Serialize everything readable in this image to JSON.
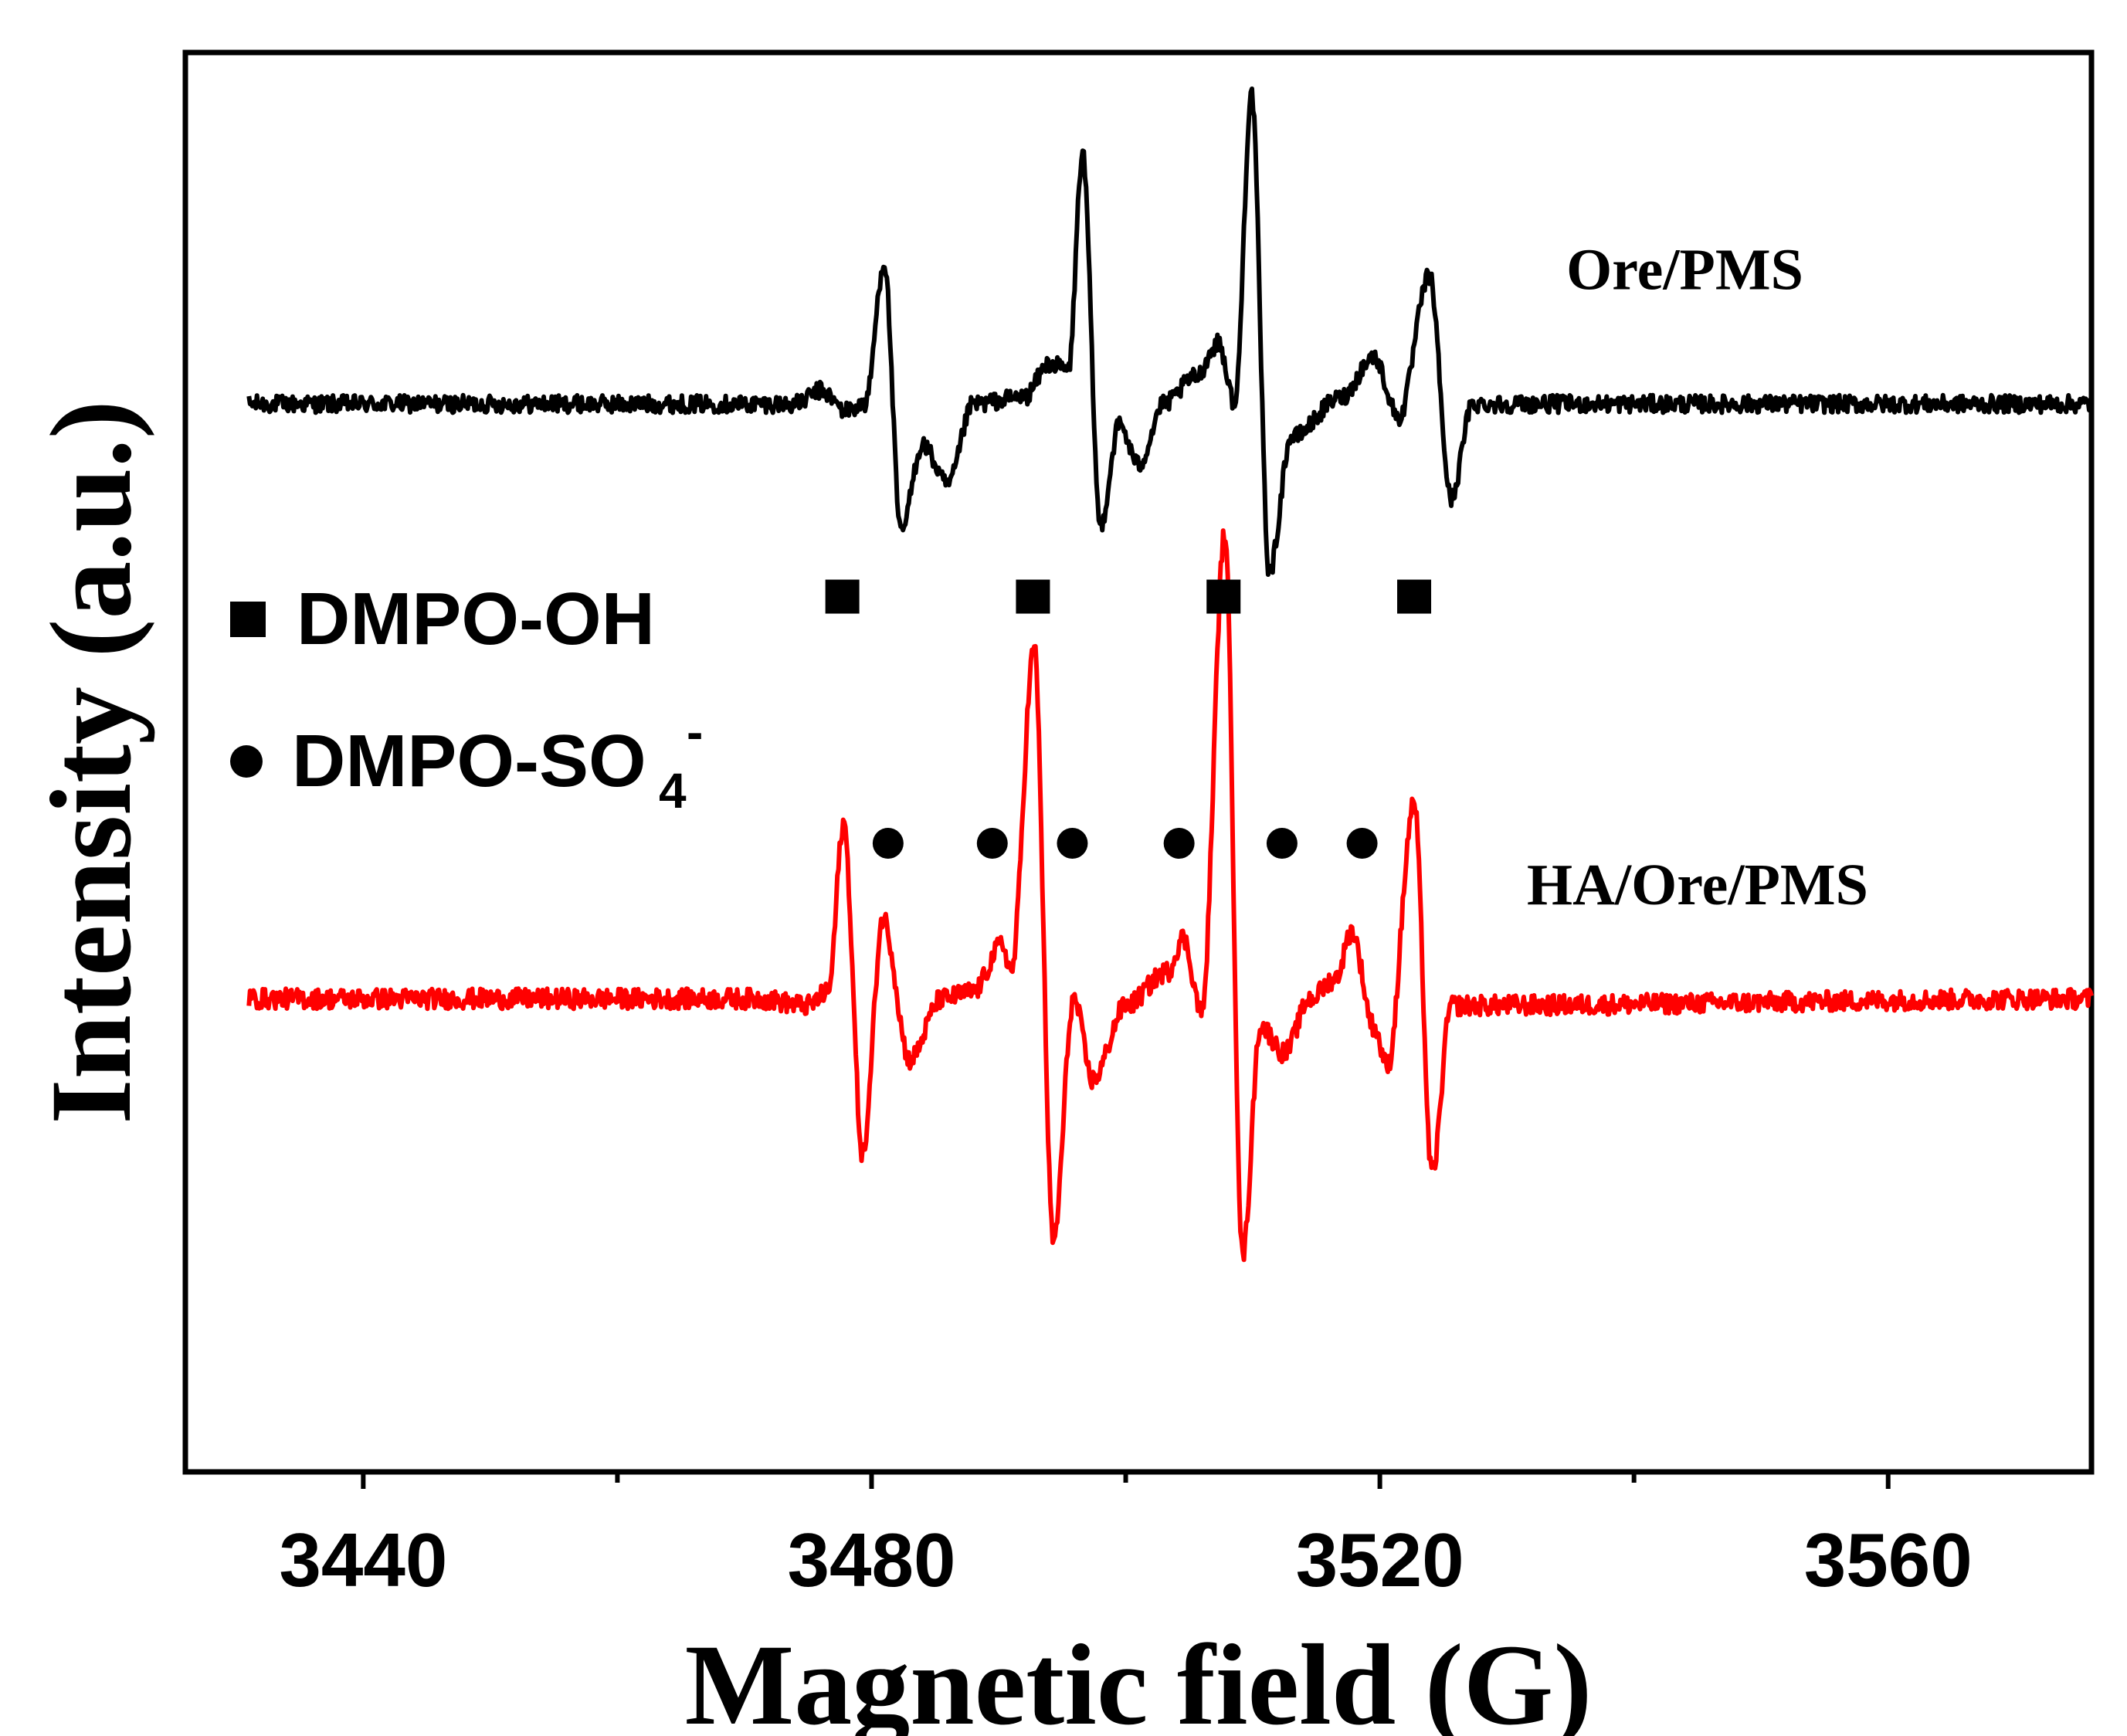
{
  "chart_data": {
    "type": "line",
    "title": "",
    "xlabel": "Magnetic field (G)",
    "ylabel": "Intensity (a.u.)",
    "xlim": [
      3426,
      3576
    ],
    "ylim": [
      -12,
      9
    ],
    "x_ticks": [
      3440,
      3480,
      3520,
      3560
    ],
    "x_tick_labels": [
      "3440",
      "3480",
      "3520",
      "3560"
    ],
    "x_minor_ticks": [
      3460,
      3500,
      3540
    ],
    "y_ticks_shown": false,
    "series": [
      {
        "name": "Ore/PMS",
        "color": "#000000",
        "baseline": 3.8,
        "noise": 0.13,
        "points": [
          [
            3431,
            3.8
          ],
          [
            3474.0,
            3.8
          ],
          [
            3476.0,
            4.0
          ],
          [
            3478.0,
            3.7
          ],
          [
            3479.5,
            3.8
          ],
          [
            3481.0,
            5.9
          ],
          [
            3482.3,
            1.9
          ],
          [
            3484.0,
            3.2
          ],
          [
            3486.0,
            2.6
          ],
          [
            3488.0,
            3.8
          ],
          [
            3492.0,
            3.9
          ],
          [
            3494.0,
            4.4
          ],
          [
            3495.5,
            4.3
          ],
          [
            3496.6,
            7.5
          ],
          [
            3498.0,
            2.0
          ],
          [
            3499.5,
            3.5
          ],
          [
            3501.0,
            2.9
          ],
          [
            3503.0,
            3.8
          ],
          [
            3505.5,
            4.2
          ],
          [
            3507.3,
            4.7
          ],
          [
            3508.6,
            3.8
          ],
          [
            3509.9,
            8.4
          ],
          [
            3511.3,
            1.3
          ],
          [
            3513.0,
            3.3
          ],
          [
            3517.0,
            3.9
          ],
          [
            3519.5,
            4.5
          ],
          [
            3521.5,
            3.6
          ],
          [
            3523.9,
            5.7
          ],
          [
            3525.6,
            2.4
          ],
          [
            3527.3,
            3.8
          ],
          [
            3576,
            3.8
          ]
        ],
        "label_position": [
          3544,
          5.5
        ]
      },
      {
        "name": "HA/Ore/PMS",
        "color": "#ff0000",
        "baseline": -5.0,
        "noise": 0.15,
        "points": [
          [
            3431,
            -5.0
          ],
          [
            3471.0,
            -5.0
          ],
          [
            3475.0,
            -5.1
          ],
          [
            3476.6,
            -4.9
          ],
          [
            3477.8,
            -2.4
          ],
          [
            3479.3,
            -7.3
          ],
          [
            3480.9,
            -3.8
          ],
          [
            3483.0,
            -5.9
          ],
          [
            3485.5,
            -5.0
          ],
          [
            3488.0,
            -4.9
          ],
          [
            3490.3,
            -4.2
          ],
          [
            3491.0,
            -4.6
          ],
          [
            3492.8,
            0.2
          ],
          [
            3494.3,
            -8.6
          ],
          [
            3495.9,
            -5.0
          ],
          [
            3497.4,
            -6.2
          ],
          [
            3500.0,
            -5.1
          ],
          [
            3503.3,
            -4.6
          ],
          [
            3504.5,
            -4.1
          ],
          [
            3506.0,
            -5.2
          ],
          [
            3507.8,
            1.9
          ],
          [
            3509.2,
            -8.8
          ],
          [
            3510.6,
            -5.4
          ],
          [
            3512.5,
            -5.8
          ],
          [
            3514.5,
            -5.0
          ],
          [
            3516.5,
            -4.7
          ],
          [
            3517.8,
            -4.0
          ],
          [
            3519.5,
            -5.4
          ],
          [
            3520.6,
            -6.0
          ],
          [
            3522.7,
            -2.1
          ],
          [
            3524.1,
            -7.6
          ],
          [
            3525.6,
            -5.1
          ],
          [
            3576,
            -5.0
          ]
        ],
        "label_position": [
          3545,
          -3.6
        ]
      }
    ],
    "markers": {
      "DMPO-OH": {
        "shape": "square",
        "x": [
          3477.7,
          3492.7,
          3507.7,
          3522.7
        ],
        "y": 0.95
      },
      "DMPO-SO4": {
        "shape": "circle",
        "x": [
          3481.3,
          3489.5,
          3495.8,
          3504.2,
          3512.3,
          3518.6
        ],
        "y": -2.7
      }
    },
    "legend": [
      {
        "marker": "square",
        "label": "DMPO-OH"
      },
      {
        "marker": "circle",
        "label": "DMPO-SO",
        "subscript": "4",
        "superscript": "-"
      }
    ],
    "legend_placement": "middle-left"
  }
}
